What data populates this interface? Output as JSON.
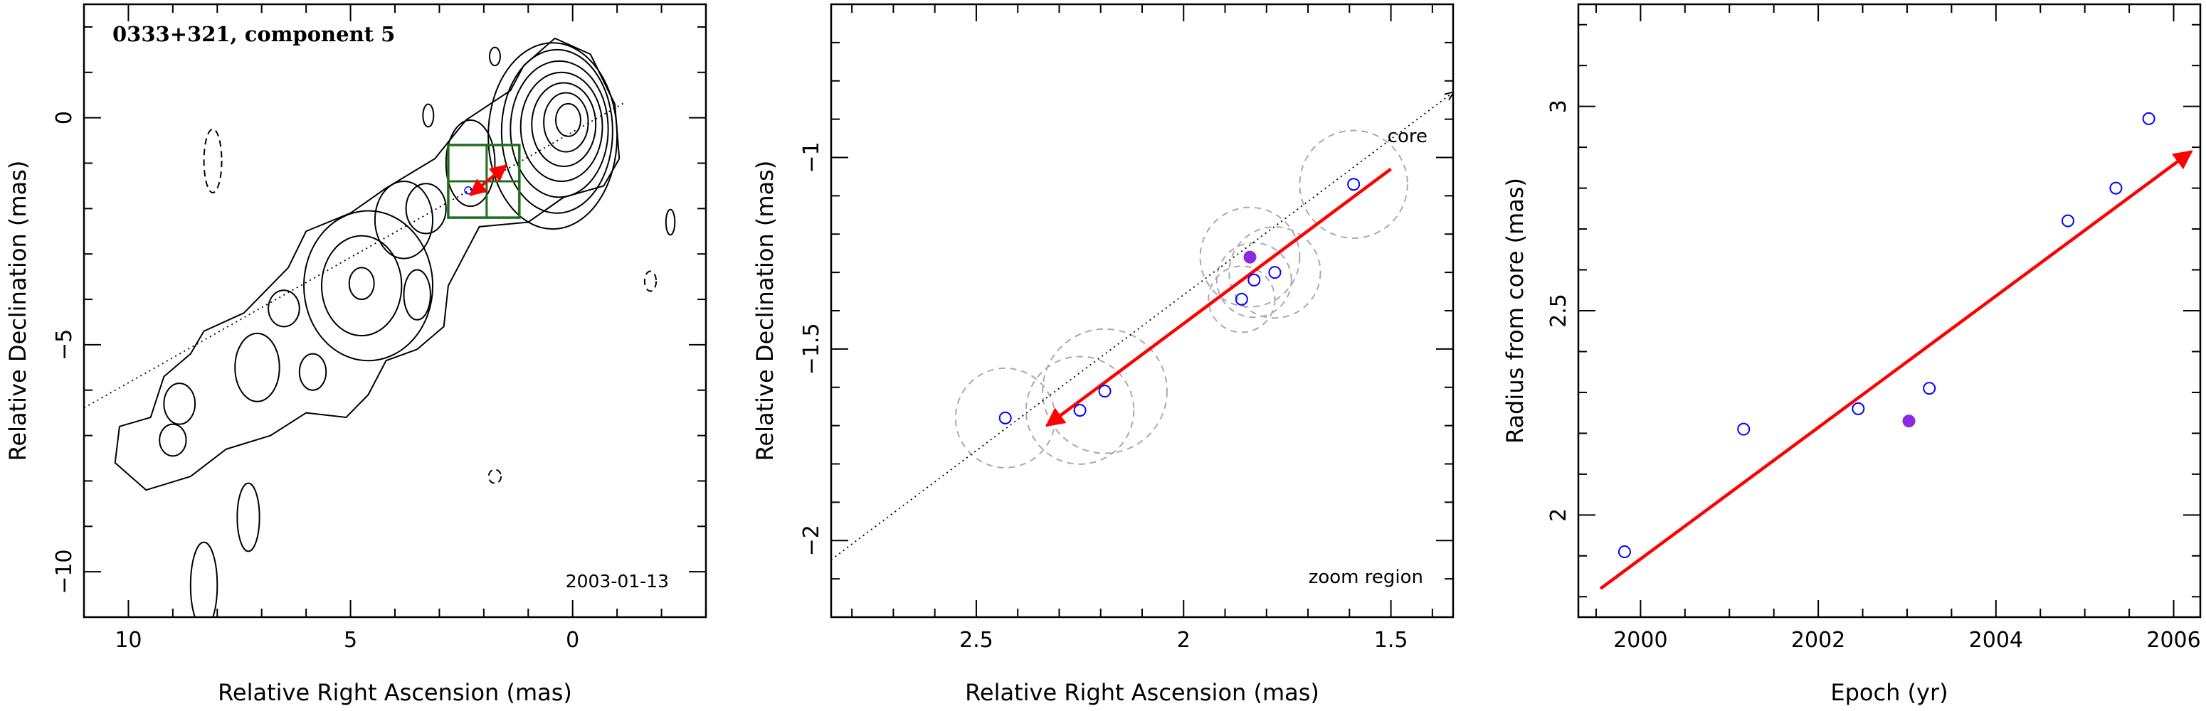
{
  "chart_data": [
    {
      "type": "contour",
      "title": "0333+321, component 5",
      "date": "2003-01-13",
      "xlabel": "Relative Right Ascension (mas)",
      "ylabel": "Relative Declination (mas)",
      "xlim": [
        11,
        -3
      ],
      "ylim": [
        -11,
        2.5
      ],
      "xticks": [
        10,
        5,
        0
      ],
      "yticks": [
        0,
        -5,
        -10
      ],
      "colors": {
        "contour": "#000000",
        "box": "#1f6e1f",
        "arrow": "#ff0000",
        "point": "#0000ff"
      },
      "jet_axis": {
        "x": [
          15,
          -1.2
        ],
        "y": [
          -8.6,
          0.35
        ]
      },
      "zoom_box": {
        "x": [
          1.2,
          2.8
        ],
        "y": [
          -0.6,
          -2.2
        ]
      },
      "component_point": {
        "x": 2.35,
        "y": -1.6
      },
      "motion_arrow": {
        "from": {
          "x": 2.3,
          "y": -1.7
        },
        "to": {
          "x": 1.5,
          "y": -1.05
        }
      },
      "contours": [
        {
          "x": 0.1,
          "y": -0.05,
          "rx": 0.28,
          "ry": 0.36,
          "style": "solid"
        },
        {
          "x": 0.15,
          "y": -0.1,
          "rx": 0.5,
          "ry": 0.65,
          "style": "solid"
        },
        {
          "x": 0.2,
          "y": -0.15,
          "rx": 0.72,
          "ry": 0.92,
          "style": "solid"
        },
        {
          "x": 0.25,
          "y": -0.2,
          "rx": 0.92,
          "ry": 1.2,
          "style": "solid"
        },
        {
          "x": 0.3,
          "y": -0.25,
          "rx": 1.1,
          "ry": 1.5,
          "style": "solid"
        },
        {
          "x": 0.35,
          "y": -0.3,
          "rx": 1.25,
          "ry": 1.8,
          "style": "solid"
        },
        {
          "x": 0.45,
          "y": -0.4,
          "rx": 1.45,
          "ry": 2.05,
          "style": "solid"
        },
        {
          "x": 4.75,
          "y": -3.65,
          "rx": 0.28,
          "ry": 0.35,
          "style": "solid"
        },
        {
          "x": 4.75,
          "y": -3.7,
          "rx": 0.9,
          "ry": 1.1,
          "style": "solid"
        },
        {
          "x": 4.6,
          "y": -3.7,
          "rx": 1.45,
          "ry": 1.65,
          "style": "solid"
        },
        {
          "x": 3.3,
          "y": -2.0,
          "rx": 0.45,
          "ry": 0.55,
          "style": "solid"
        },
        {
          "x": 7.1,
          "y": -5.5,
          "rx": 0.5,
          "ry": 0.75,
          "style": "solid"
        },
        {
          "x": 8.1,
          "y": -0.95,
          "rx": 0.2,
          "ry": 0.7,
          "style": "dashed"
        },
        {
          "x": 1.75,
          "y": 1.35,
          "rx": 0.12,
          "ry": 0.2,
          "style": "solid"
        },
        {
          "x": 3.25,
          "y": 0.05,
          "rx": 0.12,
          "ry": 0.25,
          "style": "solid"
        },
        {
          "x": -2.2,
          "y": -2.3,
          "rx": 0.1,
          "ry": 0.28,
          "style": "solid"
        },
        {
          "x": -1.75,
          "y": -3.6,
          "rx": 0.13,
          "ry": 0.22,
          "style": "dashed"
        },
        {
          "x": 1.75,
          "y": -7.9,
          "rx": 0.14,
          "ry": 0.15,
          "style": "dashed"
        },
        {
          "x": 7.3,
          "y": -8.8,
          "rx": 0.25,
          "ry": 0.75,
          "style": "solid"
        },
        {
          "x": 8.3,
          "y": -10.3,
          "rx": 0.3,
          "ry": 0.95,
          "style": "solid"
        },
        {
          "x": 3.8,
          "y": -2.25,
          "rx": 0.65,
          "ry": 0.85,
          "style": "solid"
        },
        {
          "x": 2.3,
          "y": -1.0,
          "rx": 0.55,
          "ry": 0.95,
          "style": "solid"
        },
        {
          "x": 6.5,
          "y": -4.2,
          "rx": 0.35,
          "ry": 0.4,
          "style": "solid"
        },
        {
          "x": 3.5,
          "y": -3.9,
          "rx": 0.3,
          "ry": 0.55,
          "style": "solid"
        },
        {
          "x": 8.85,
          "y": -6.3,
          "rx": 0.35,
          "ry": 0.45,
          "style": "solid"
        },
        {
          "x": 9.0,
          "y": -7.1,
          "rx": 0.3,
          "ry": 0.35,
          "style": "solid"
        },
        {
          "x": 5.85,
          "y": -5.6,
          "rx": 0.3,
          "ry": 0.4,
          "style": "solid"
        }
      ],
      "envelope": [
        {
          "x": 0.4,
          "y": 1.75
        },
        {
          "x": -0.4,
          "y": 1.4
        },
        {
          "x": -0.95,
          "y": 0.3
        },
        {
          "x": -1.05,
          "y": -0.9
        },
        {
          "x": -0.7,
          "y": -1.5
        },
        {
          "x": 0.2,
          "y": -1.75
        },
        {
          "x": 1.0,
          "y": -2.3
        },
        {
          "x": 2.1,
          "y": -2.4
        },
        {
          "x": 2.8,
          "y": -3.7
        },
        {
          "x": 2.9,
          "y": -4.6
        },
        {
          "x": 3.5,
          "y": -5.1
        },
        {
          "x": 4.2,
          "y": -5.35
        },
        {
          "x": 4.6,
          "y": -6.1
        },
        {
          "x": 5.1,
          "y": -6.6
        },
        {
          "x": 6.0,
          "y": -6.5
        },
        {
          "x": 6.8,
          "y": -7.0
        },
        {
          "x": 7.8,
          "y": -7.3
        },
        {
          "x": 8.6,
          "y": -7.9
        },
        {
          "x": 9.6,
          "y": -8.2
        },
        {
          "x": 10.3,
          "y": -7.6
        },
        {
          "x": 10.2,
          "y": -6.8
        },
        {
          "x": 9.5,
          "y": -6.6
        },
        {
          "x": 9.2,
          "y": -5.7
        },
        {
          "x": 8.6,
          "y": -5.2
        },
        {
          "x": 8.3,
          "y": -4.7
        },
        {
          "x": 7.4,
          "y": -4.3
        },
        {
          "x": 6.4,
          "y": -3.3
        },
        {
          "x": 6.0,
          "y": -2.5
        },
        {
          "x": 5.0,
          "y": -2.1
        },
        {
          "x": 4.2,
          "y": -1.55
        },
        {
          "x": 3.1,
          "y": -0.9
        },
        {
          "x": 2.4,
          "y": -0.05
        },
        {
          "x": 1.4,
          "y": 0.6
        },
        {
          "x": 1.1,
          "y": 1.15
        }
      ]
    },
    {
      "type": "scatter",
      "xlabel": "Relative Right Ascension (mas)",
      "ylabel": "Relative Declination (mas)",
      "xlim": [
        2.85,
        1.35
      ],
      "ylim": [
        -2.2,
        -0.6
      ],
      "xticks": [
        2.5,
        2,
        1.5
      ],
      "yticks": [
        -1,
        -1.5,
        -2
      ],
      "annotations": [
        "core",
        "zoom region"
      ],
      "colors": {
        "open": "#0000ff",
        "filled": "#8a2be2",
        "arrow": "#ff0000",
        "circle": "#aaaaaa"
      },
      "jet_axis": {
        "x": [
          2.85,
          1.35
        ],
        "y": [
          -2.05,
          -0.83
        ]
      },
      "motion_arrow": {
        "from": {
          "x": 1.5,
          "y": -1.03
        },
        "to": {
          "x": 2.33,
          "y": -1.7
        }
      },
      "points": [
        {
          "x": 1.59,
          "y": -1.07,
          "filled": false
        },
        {
          "x": 1.78,
          "y": -1.3,
          "filled": false
        },
        {
          "x": 1.83,
          "y": -1.32,
          "filled": false
        },
        {
          "x": 1.86,
          "y": -1.37,
          "filled": false
        },
        {
          "x": 1.84,
          "y": -1.26,
          "filled": true
        },
        {
          "x": 2.19,
          "y": -1.61,
          "filled": false
        },
        {
          "x": 2.25,
          "y": -1.66,
          "filled": false
        },
        {
          "x": 2.43,
          "y": -1.68,
          "filled": false
        }
      ],
      "error_circles": [
        {
          "x": 1.59,
          "y": -1.07,
          "r": 0.13
        },
        {
          "x": 1.78,
          "y": -1.3,
          "r": 0.11
        },
        {
          "x": 1.83,
          "y": -1.32,
          "r": 0.09
        },
        {
          "x": 1.86,
          "y": -1.37,
          "r": 0.08
        },
        {
          "x": 1.84,
          "y": -1.26,
          "r": 0.12
        },
        {
          "x": 2.19,
          "y": -1.61,
          "r": 0.15
        },
        {
          "x": 2.25,
          "y": -1.66,
          "r": 0.13
        },
        {
          "x": 2.43,
          "y": -1.68,
          "r": 0.12
        }
      ]
    },
    {
      "type": "scatter",
      "xlabel": "Epoch (yr)",
      "ylabel": "Radius from core (mas)",
      "xlim": [
        1999.3,
        2006.3
      ],
      "ylim": [
        1.75,
        3.25
      ],
      "xticks": [
        2000,
        2002,
        2004,
        2006
      ],
      "yticks": [
        2,
        2.5,
        3
      ],
      "colors": {
        "open": "#0000ff",
        "filled": "#8a2be2",
        "arrow": "#ff0000"
      },
      "fit_arrow": {
        "from": {
          "x": 1999.55,
          "y": 1.82
        },
        "to": {
          "x": 2006.2,
          "y": 2.89
        }
      },
      "points": [
        {
          "x": 1999.82,
          "y": 1.91,
          "filled": false
        },
        {
          "x": 2001.16,
          "y": 2.21,
          "filled": false
        },
        {
          "x": 2002.45,
          "y": 2.26,
          "filled": false
        },
        {
          "x": 2003.02,
          "y": 2.23,
          "filled": true
        },
        {
          "x": 2003.25,
          "y": 2.31,
          "filled": false
        },
        {
          "x": 2004.81,
          "y": 2.72,
          "filled": false
        },
        {
          "x": 2005.35,
          "y": 2.8,
          "filled": false
        },
        {
          "x": 2005.72,
          "y": 2.97,
          "filled": false
        }
      ]
    }
  ]
}
